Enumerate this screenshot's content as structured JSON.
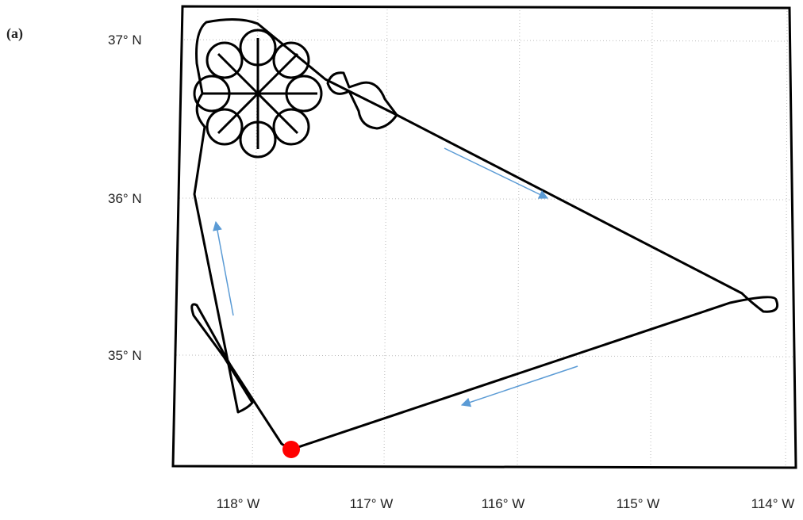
{
  "panel_label": "(a)",
  "map": {
    "lat_labels": [
      "37° N",
      "36° N",
      "35° N"
    ],
    "lon_labels": [
      "118° W",
      "117° W",
      "116° W",
      "115° W",
      "114° W"
    ]
  }
}
